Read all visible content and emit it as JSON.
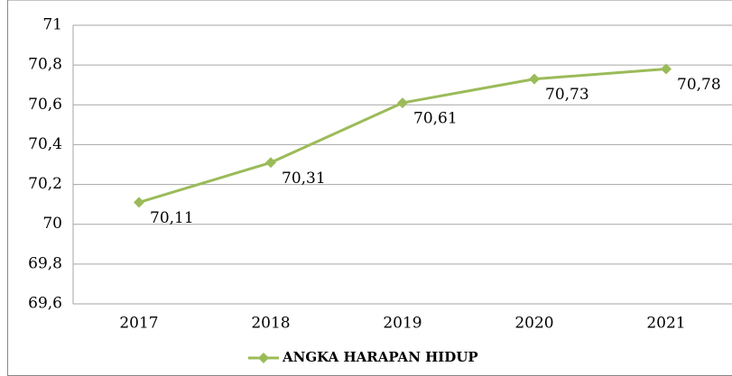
{
  "chart_data": {
    "type": "line",
    "categories": [
      "2017",
      "2018",
      "2019",
      "2020",
      "2021"
    ],
    "series": [
      {
        "name": "ANGKA HARAPAN HIDUP",
        "color": "#9bbb59",
        "values": [
          70.11,
          70.31,
          70.61,
          70.73,
          70.78
        ],
        "value_labels": [
          "70,11",
          "70,31",
          "70,61",
          "70,73",
          "70,78"
        ]
      }
    ],
    "ylim": [
      69.6,
      71
    ],
    "yticks": [
      {
        "value": 69.6,
        "label": "69,6"
      },
      {
        "value": 69.8,
        "label": "69,8"
      },
      70,
      {
        "value": 70.2,
        "label": "70,2"
      },
      {
        "value": 70.4,
        "label": "70,4"
      },
      {
        "value": 70.6,
        "label": "70,6"
      },
      {
        "value": 70.8,
        "label": "70,8"
      },
      71
    ],
    "grid": true,
    "legend": "bottom"
  }
}
